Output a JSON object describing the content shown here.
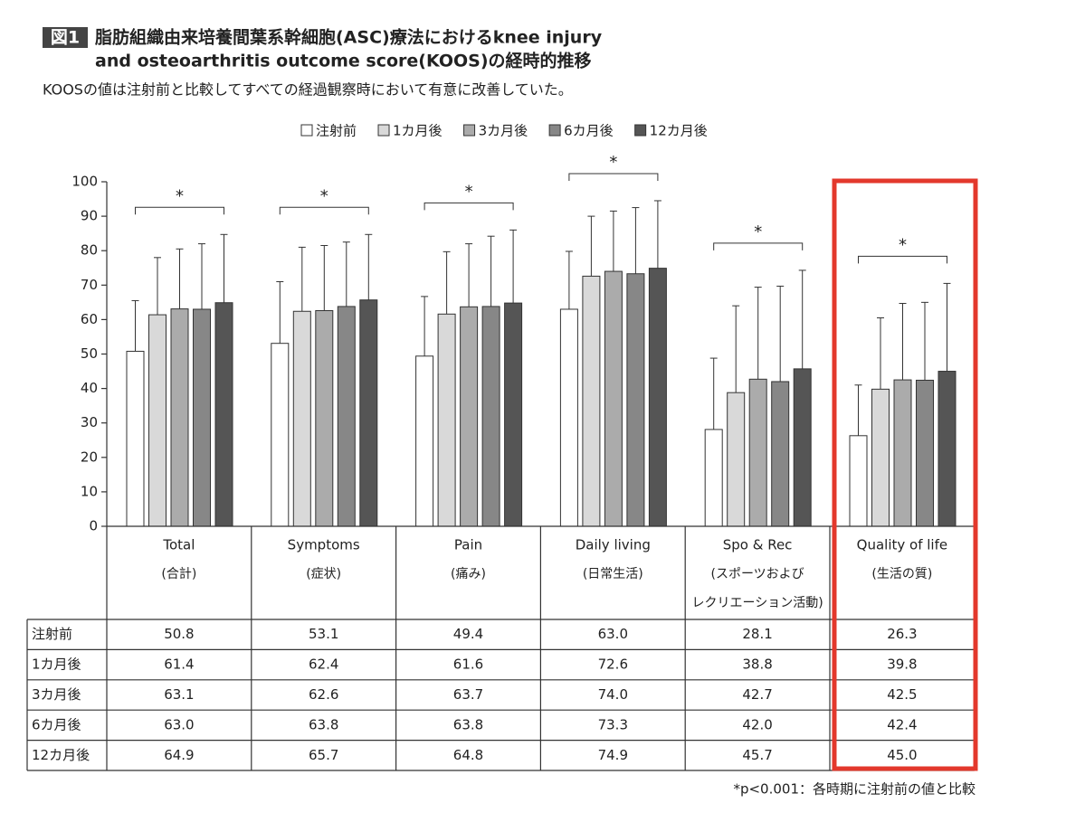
{
  "chart_data": {
    "type": "bar",
    "badge": "図1",
    "title": [
      "脂肪組織由来培養間葉系幹細胞(ASC)療法におけるknee injury",
      "and osteoarthritis outcome score(KOOS)の経時的推移"
    ],
    "subtitle": "KOOSの値は注射前と比較してすべての経過観察時において有意に改善していた。",
    "categories": [
      [
        "Total",
        "(合計)"
      ],
      [
        "Symptoms",
        "(症状)"
      ],
      [
        "Pain",
        "(痛み)"
      ],
      [
        "Daily living",
        "(日常生活)"
      ],
      [
        "Spo & Rec",
        "(スポーツおよび",
        "レクリエーション活動)"
      ],
      [
        "Quality of life",
        "(生活の質)"
      ]
    ],
    "series": [
      {
        "name": "注射前",
        "color": "#ffffff",
        "values": [
          50.8,
          53.1,
          49.4,
          63.0,
          28.1,
          26.3
        ],
        "value_labels": [
          "50.8",
          "53.1",
          "49.4",
          "63.0",
          "28.1",
          "26.3"
        ],
        "errors": [
          14.7,
          17.9,
          17.3,
          16.8,
          20.7,
          14.7
        ]
      },
      {
        "name": "1カ月後",
        "color": "#d9d9d9",
        "values": [
          61.4,
          62.4,
          61.6,
          72.6,
          38.8,
          39.8
        ],
        "value_labels": [
          "61.4",
          "62.4",
          "61.6",
          "72.6",
          "38.8",
          "39.8"
        ],
        "errors": [
          16.6,
          18.6,
          18.1,
          17.4,
          25.2,
          20.7
        ]
      },
      {
        "name": "3カ月後",
        "color": "#ababab",
        "values": [
          63.1,
          62.6,
          63.7,
          74.0,
          42.7,
          42.5
        ],
        "value_labels": [
          "63.1",
          "62.6",
          "63.7",
          "74.0",
          "42.7",
          "42.5"
        ],
        "errors": [
          17.4,
          18.9,
          18.3,
          17.5,
          26.7,
          22.2
        ]
      },
      {
        "name": "6カ月後",
        "color": "#878787",
        "values": [
          63.0,
          63.8,
          63.8,
          73.3,
          42.0,
          42.4
        ],
        "value_labels": [
          "63.0",
          "63.8",
          "63.8",
          "73.3",
          "42.0",
          "42.4"
        ],
        "errors": [
          19.0,
          18.7,
          20.4,
          19.2,
          27.7,
          22.6
        ]
      },
      {
        "name": "12カ月後",
        "color": "#555555",
        "values": [
          64.9,
          65.7,
          64.8,
          74.9,
          45.7,
          45.0
        ],
        "value_labels": [
          "64.9",
          "65.7",
          "64.8",
          "74.9",
          "45.7",
          "45.0"
        ],
        "errors": [
          19.8,
          19.0,
          21.2,
          19.6,
          28.6,
          25.5
        ]
      }
    ],
    "significance": [
      "*",
      "*",
      "*",
      "*",
      "*",
      "*"
    ],
    "ylim": [
      0,
      100
    ],
    "yticks": [
      0,
      10,
      20,
      30,
      40,
      50,
      60,
      70,
      80,
      90,
      100
    ],
    "footnote": "*p<0.001：各時期に注射前の値と比較"
  }
}
